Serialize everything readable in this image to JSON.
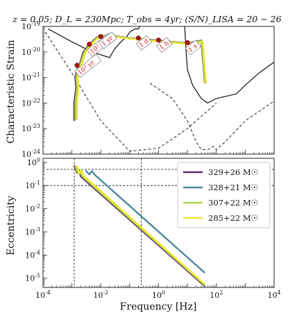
{
  "figure_title": "z = 0.05; D_L = 230Mpc; T_obs = 4yr; (S/N)_LISA = 20 − 26",
  "chart_data": [
    {
      "type": "line",
      "panel": "top",
      "ylabel": "Characteristic Strain",
      "xscale": "log",
      "yscale": "log",
      "xlim": [
        0.0001,
        10000
      ],
      "ylim": [
        1e-24,
        1e-19
      ],
      "yticks": [
        {
          "v": 1e-19,
          "label": "10^-19"
        },
        {
          "v": 1e-20,
          "label": "10^-20"
        },
        {
          "v": 1e-21,
          "label": "10^-21"
        },
        {
          "v": 1e-22,
          "label": "10^-22"
        },
        {
          "v": 1e-23,
          "label": "10^-23"
        },
        {
          "v": 1e-24,
          "label": "10^-24"
        }
      ],
      "sensitivity_curves": [
        {
          "style": "dashed",
          "points": [
            [
              0.00012,
              6e-20
            ],
            [
              0.001,
              1.5e-21
            ],
            [
              0.01,
              2e-23
            ],
            [
              0.1,
              1.3e-24
            ],
            [
              1,
              1.7e-24
            ],
            [
              10,
              1e-23
            ],
            [
              100,
              1e-22
            ]
          ]
        },
        {
          "style": "dashed",
          "points": [
            [
              0.5,
              6e-22
            ],
            [
              3,
              1.5e-22
            ],
            [
              10,
              2e-23
            ],
            [
              20,
              3e-24
            ],
            [
              30,
              1.5e-24
            ],
            [
              50,
              1.5e-24
            ],
            [
              80,
              2e-24
            ],
            [
              100,
              1.5e-24
            ],
            [
              200,
              3e-24
            ],
            [
              1000,
              2e-23
            ],
            [
              10000,
              1.2e-22
            ]
          ]
        },
        {
          "style": "solid",
          "points": [
            [
              0.00015,
              8e-20
            ],
            [
              0.001,
              2.5e-20
            ],
            [
              0.005,
              1e-20
            ],
            [
              0.02,
              6e-21
            ],
            [
              0.03,
              1.3e-20
            ],
            [
              0.05,
              2.5e-20
            ],
            [
              0.08,
              4e-20
            ],
            [
              0.1,
              6e-20
            ],
            [
              0.15,
              8e-20
            ],
            [
              0.2,
              8e-20
            ],
            [
              0.25,
              1.3e-19
            ],
            [
              0.3,
              1.5e-19
            ]
          ]
        },
        {
          "style": "solid",
          "points": [
            [
              8,
              1e-19
            ],
            [
              9,
              1e-20
            ],
            [
              10,
              2e-21
            ],
            [
              15,
              5e-22
            ],
            [
              30,
              1.5e-22
            ],
            [
              50,
              1e-22
            ],
            [
              100,
              1.5e-22
            ],
            [
              300,
              2e-22
            ],
            [
              500,
              2.3e-22
            ],
            [
              1000,
              5e-22
            ],
            [
              3000,
              1.5e-21
            ],
            [
              10000,
              4e-21
            ]
          ]
        }
      ],
      "series": [
        {
          "name": "329+26 M☉",
          "color": "#5b2a6e",
          "points": [
            [
              0.0012,
              2e-23
            ],
            [
              0.0012,
              1e-22
            ],
            [
              0.0014,
              4e-22
            ],
            [
              0.0013,
              1e-21
            ],
            [
              0.0015,
              2e-21
            ],
            [
              0.0018,
              3e-21
            ],
            [
              0.0025,
              1e-20
            ],
            [
              0.004,
              2e-20
            ],
            [
              0.008,
              4e-20
            ],
            [
              0.02,
              4.5e-20
            ],
            [
              0.1,
              3.5e-20
            ],
            [
              1,
              2.8e-20
            ],
            [
              10,
              2.2e-20
            ],
            [
              30,
              2.8e-20
            ],
            [
              40,
              6e-22
            ]
          ]
        },
        {
          "name": "328+21 M☉",
          "color": "#4a8aa0",
          "points": [
            [
              0.0014,
              2.2e-23
            ],
            [
              0.0014,
              1e-22
            ],
            [
              0.0016,
              4e-22
            ],
            [
              0.0015,
              1e-21
            ],
            [
              0.0017,
              2e-21
            ],
            [
              0.002,
              3e-21
            ],
            [
              0.0028,
              1e-20
            ],
            [
              0.0045,
              2e-20
            ],
            [
              0.009,
              4e-20
            ],
            [
              0.022,
              4.2e-20
            ],
            [
              0.11,
              3.3e-20
            ],
            [
              1.1,
              2.6e-20
            ],
            [
              11,
              2.1e-20
            ],
            [
              32,
              2.6e-20
            ],
            [
              42,
              6e-22
            ]
          ]
        },
        {
          "name": "307+22 M☉",
          "color": "#a8d84a",
          "points": [
            [
              0.0013,
              2.1e-23
            ],
            [
              0.0013,
              1e-22
            ],
            [
              0.0015,
              4e-22
            ],
            [
              0.0014,
              1e-21
            ],
            [
              0.0016,
              2e-21
            ],
            [
              0.0019,
              3e-21
            ],
            [
              0.0027,
              1e-20
            ],
            [
              0.0043,
              2e-20
            ],
            [
              0.0085,
              4e-20
            ],
            [
              0.021,
              4.3e-20
            ],
            [
              0.105,
              3.4e-20
            ],
            [
              1.05,
              2.7e-20
            ],
            [
              10.5,
              2.15e-20
            ],
            [
              31,
              2.7e-20
            ],
            [
              41,
              6e-22
            ]
          ]
        },
        {
          "name": "285+22 M☉",
          "color": "#f2e632",
          "points": [
            [
              0.0015,
              2.3e-23
            ],
            [
              0.0015,
              1e-22
            ],
            [
              0.0017,
              4e-22
            ],
            [
              0.0016,
              1e-21
            ],
            [
              0.0018,
              2e-21
            ],
            [
              0.0021,
              3e-21
            ],
            [
              0.003,
              1e-20
            ],
            [
              0.0047,
              2e-20
            ],
            [
              0.0095,
              4e-20
            ],
            [
              0.023,
              4.1e-20
            ],
            [
              0.12,
              3.2e-20
            ],
            [
              1.2,
              2.5e-20
            ],
            [
              12,
              2e-20
            ],
            [
              34,
              2.5e-20
            ],
            [
              44,
              6e-22
            ]
          ]
        }
      ],
      "markers": [
        {
          "x": 0.0015,
          "y": 3e-21,
          "label": "10^3 yr"
        },
        {
          "x": 0.004,
          "y": 2e-20,
          "label": "10^2 yr"
        },
        {
          "x": 0.01,
          "y": 4e-20,
          "label": "1 yr"
        },
        {
          "x": 0.2,
          "y": 3.5e-20,
          "label": "1 d"
        },
        {
          "x": 1,
          "y": 2.9e-20,
          "label": "1 h"
        },
        {
          "x": 10,
          "y": 2.3e-20,
          "label": "1 s"
        }
      ]
    },
    {
      "type": "line",
      "panel": "bottom",
      "xlabel": "Frequency [Hz]",
      "ylabel": "Eccentricity",
      "xscale": "log",
      "yscale": "log",
      "xlim": [
        0.0001,
        10000
      ],
      "ylim": [
        4e-06,
        1.5
      ],
      "xticks": [
        {
          "v": 0.0001,
          "label": "10^-4"
        },
        {
          "v": 0.01,
          "label": "10^-2"
        },
        {
          "v": 1,
          "label": "10^0"
        },
        {
          "v": 100,
          "label": "10^2"
        },
        {
          "v": 10000,
          "label": "10^4"
        }
      ],
      "yticks": [
        {
          "v": 1,
          "label": "10^0"
        },
        {
          "v": 0.1,
          "label": "10^-1"
        },
        {
          "v": 0.01,
          "label": "10^-2"
        },
        {
          "v": 0.001,
          "label": "10^-3"
        },
        {
          "v": 0.0001,
          "label": "10^-4"
        },
        {
          "v": 1e-05,
          "label": "10^-5"
        }
      ],
      "reference_lines": {
        "vertical": [
          0.0012,
          0.25
        ],
        "horizontal": [
          0.5,
          0.1
        ]
      },
      "legend_position": "top-right",
      "series": [
        {
          "name": "329+26 M☉",
          "color": "#5b2a6e",
          "points": [
            [
              0.0012,
              0.75
            ],
            [
              0.0015,
              0.35
            ],
            [
              0.0018,
              0.45
            ],
            [
              0.002,
              0.25
            ],
            [
              40,
              4.5e-06
            ]
          ]
        },
        {
          "name": "328+21 M☉",
          "color": "#4a8aa0",
          "points": [
            [
              0.003,
              0.45
            ],
            [
              0.004,
              0.3
            ],
            [
              0.005,
              0.42
            ],
            [
              0.006,
              0.3
            ],
            [
              40,
              1.7e-05
            ]
          ]
        },
        {
          "name": "307+22 M☉",
          "color": "#a8d84a",
          "points": [
            [
              0.0013,
              0.72
            ],
            [
              0.0016,
              0.34
            ],
            [
              0.0019,
              0.44
            ],
            [
              0.0022,
              0.26
            ],
            [
              40,
              5e-06
            ]
          ]
        },
        {
          "name": "285+22 M☉",
          "color": "#f2e632",
          "points": [
            [
              0.0015,
              0.7
            ],
            [
              0.0018,
              0.33
            ],
            [
              0.0022,
              0.43
            ],
            [
              0.0025,
              0.27
            ],
            [
              40,
              5.5e-06
            ]
          ]
        }
      ]
    }
  ]
}
